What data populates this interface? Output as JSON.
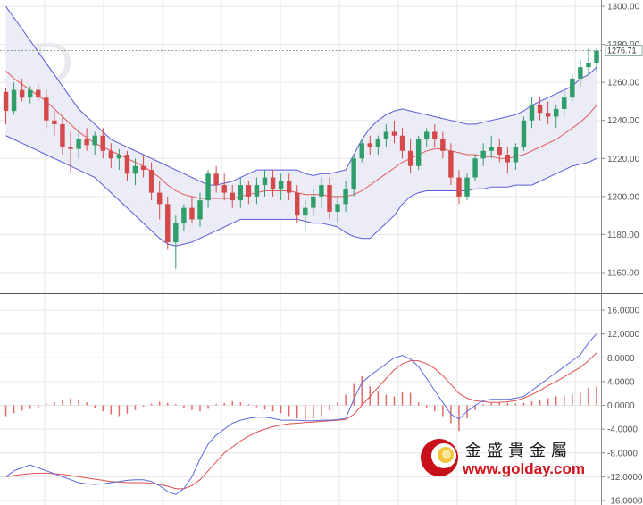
{
  "chart_data": [
    {
      "type": "candlestick",
      "panel": "price",
      "watermark": "1D",
      "last_price_label": "1276.71",
      "last_price": 1276.71,
      "ylim": [
        1150,
        1305
      ],
      "y_ticks": [
        1300,
        1280,
        1260,
        1240,
        1220,
        1200,
        1180,
        1160
      ],
      "y_tick_labels": [
        "1300.00",
        "1280.00",
        "1260.00",
        "1240.00",
        "1220.00",
        "1200.00",
        "1180.00",
        "1160.00"
      ],
      "grid": true,
      "ohlc": [
        [
          1255,
          1257,
          1238,
          1245
        ],
        [
          1245,
          1260,
          1243,
          1256
        ],
        [
          1256,
          1262,
          1250,
          1252
        ],
        [
          1252,
          1258,
          1249,
          1256
        ],
        [
          1256,
          1259,
          1250,
          1252
        ],
        [
          1252,
          1256,
          1236,
          1240
        ],
        [
          1240,
          1245,
          1232,
          1238
        ],
        [
          1238,
          1242,
          1222,
          1226
        ],
        [
          1226,
          1234,
          1212,
          1225
        ],
        [
          1225,
          1235,
          1220,
          1230
        ],
        [
          1230,
          1236,
          1224,
          1227
        ],
        [
          1227,
          1234,
          1222,
          1232
        ],
        [
          1232,
          1236,
          1220,
          1224
        ],
        [
          1224,
          1228,
          1215,
          1220
        ],
        [
          1220,
          1225,
          1214,
          1222
        ],
        [
          1222,
          1224,
          1208,
          1212
        ],
        [
          1212,
          1220,
          1206,
          1216
        ],
        [
          1216,
          1222,
          1210,
          1214
        ],
        [
          1214,
          1218,
          1198,
          1202
        ],
        [
          1202,
          1208,
          1188,
          1196
        ],
        [
          1196,
          1200,
          1172,
          1176
        ],
        [
          1176,
          1190,
          1162,
          1186
        ],
        [
          1186,
          1196,
          1182,
          1194
        ],
        [
          1194,
          1200,
          1186,
          1188
        ],
        [
          1188,
          1202,
          1184,
          1198
        ],
        [
          1198,
          1214,
          1194,
          1212
        ],
        [
          1212,
          1216,
          1202,
          1206
        ],
        [
          1206,
          1212,
          1198,
          1202
        ],
        [
          1202,
          1206,
          1194,
          1198
        ],
        [
          1198,
          1210,
          1194,
          1206
        ],
        [
          1206,
          1208,
          1196,
          1200
        ],
        [
          1200,
          1210,
          1196,
          1206
        ],
        [
          1206,
          1214,
          1200,
          1210
        ],
        [
          1210,
          1214,
          1200,
          1204
        ],
        [
          1204,
          1212,
          1198,
          1208
        ],
        [
          1208,
          1212,
          1198,
          1202
        ],
        [
          1202,
          1206,
          1186,
          1190
        ],
        [
          1190,
          1198,
          1182,
          1194
        ],
        [
          1194,
          1204,
          1190,
          1200
        ],
        [
          1200,
          1210,
          1194,
          1206
        ],
        [
          1206,
          1210,
          1188,
          1192
        ],
        [
          1192,
          1200,
          1186,
          1196
        ],
        [
          1196,
          1208,
          1192,
          1204
        ],
        [
          1204,
          1222,
          1200,
          1220
        ],
        [
          1220,
          1230,
          1218,
          1228
        ],
        [
          1228,
          1232,
          1222,
          1226
        ],
        [
          1226,
          1232,
          1222,
          1230
        ],
        [
          1230,
          1238,
          1226,
          1234
        ],
        [
          1234,
          1240,
          1228,
          1232
        ],
        [
          1232,
          1236,
          1220,
          1224
        ],
        [
          1224,
          1230,
          1212,
          1216
        ],
        [
          1216,
          1232,
          1214,
          1230
        ],
        [
          1230,
          1236,
          1226,
          1234
        ],
        [
          1234,
          1238,
          1226,
          1230
        ],
        [
          1230,
          1234,
          1220,
          1224
        ],
        [
          1224,
          1228,
          1206,
          1210
        ],
        [
          1210,
          1214,
          1196,
          1200
        ],
        [
          1200,
          1212,
          1198,
          1210
        ],
        [
          1210,
          1222,
          1208,
          1220
        ],
        [
          1220,
          1228,
          1216,
          1224
        ],
        [
          1224,
          1232,
          1220,
          1226
        ],
        [
          1226,
          1230,
          1218,
          1222
        ],
        [
          1222,
          1226,
          1212,
          1218
        ],
        [
          1218,
          1228,
          1214,
          1226
        ],
        [
          1226,
          1242,
          1224,
          1240
        ],
        [
          1240,
          1252,
          1236,
          1248
        ],
        [
          1248,
          1252,
          1240,
          1244
        ],
        [
          1244,
          1250,
          1238,
          1242
        ],
        [
          1242,
          1248,
          1236,
          1246
        ],
        [
          1246,
          1256,
          1242,
          1252
        ],
        [
          1252,
          1264,
          1250,
          1262
        ],
        [
          1262,
          1272,
          1258,
          1268
        ],
        [
          1268,
          1278,
          1264,
          1270
        ],
        [
          1270,
          1278,
          1266,
          1276.71
        ]
      ],
      "sma": [
        1266,
        1262,
        1259,
        1256,
        1253,
        1250,
        1246,
        1242,
        1238,
        1234,
        1231,
        1228,
        1226,
        1224,
        1222,
        1220,
        1218,
        1216,
        1213,
        1210,
        1206,
        1203,
        1201,
        1200,
        1199,
        1199,
        1199,
        1199,
        1199,
        1200,
        1201,
        1202,
        1203,
        1203,
        1203,
        1203,
        1202,
        1201,
        1201,
        1201,
        1200,
        1200,
        1200,
        1201,
        1203,
        1206,
        1209,
        1212,
        1215,
        1218,
        1220,
        1222,
        1224,
        1225,
        1225,
        1224,
        1223,
        1222,
        1222,
        1221,
        1221,
        1220,
        1220,
        1221,
        1222,
        1224,
        1226,
        1228,
        1230,
        1233,
        1236,
        1239,
        1243,
        1248
      ],
      "bb_upper": [
        1300,
        1294,
        1288,
        1282,
        1276,
        1270,
        1264,
        1258,
        1252,
        1246,
        1242,
        1238,
        1234,
        1230,
        1228,
        1226,
        1224,
        1222,
        1220,
        1218,
        1216,
        1214,
        1212,
        1210,
        1208,
        1206,
        1206,
        1207,
        1208,
        1210,
        1212,
        1214,
        1214,
        1214,
        1214,
        1214,
        1214,
        1212,
        1211,
        1212,
        1212,
        1213,
        1214,
        1222,
        1230,
        1236,
        1240,
        1243,
        1245,
        1246,
        1245,
        1244,
        1243,
        1242,
        1241,
        1240,
        1239,
        1238,
        1238,
        1239,
        1240,
        1241,
        1242,
        1243,
        1245,
        1248,
        1250,
        1252,
        1254,
        1256,
        1258,
        1262,
        1264,
        1268
      ],
      "bb_lower": [
        1232,
        1230,
        1228,
        1226,
        1224,
        1222,
        1220,
        1218,
        1216,
        1214,
        1212,
        1210,
        1206,
        1202,
        1198,
        1194,
        1190,
        1186,
        1182,
        1178,
        1175,
        1174,
        1175,
        1176,
        1178,
        1180,
        1182,
        1184,
        1186,
        1188,
        1188,
        1188,
        1188,
        1188,
        1188,
        1188,
        1188,
        1187,
        1186,
        1186,
        1185,
        1184,
        1181,
        1179,
        1178,
        1178,
        1182,
        1186,
        1190,
        1196,
        1200,
        1202,
        1203,
        1203,
        1203,
        1203,
        1203,
        1203,
        1204,
        1204,
        1205,
        1205,
        1205,
        1206,
        1206,
        1206,
        1208,
        1210,
        1212,
        1214,
        1216,
        1217,
        1218,
        1220
      ]
    },
    {
      "type": "macd",
      "panel": "indicator",
      "ylim": [
        -17,
        17
      ],
      "y_ticks": [
        16,
        12,
        8,
        4,
        0,
        -4,
        -8,
        -12,
        -16
      ],
      "y_tick_labels": [
        "16.0000",
        "12.0000",
        "8.0000",
        "4.0000",
        "0.0000",
        "-4.0000",
        "-8.0000",
        "-12.0000",
        "-16.0000"
      ],
      "grid": true,
      "macd": [
        -12,
        -11,
        -10.5,
        -10,
        -10.5,
        -11,
        -11.5,
        -12,
        -12.5,
        -13,
        -13.2,
        -13.3,
        -13.2,
        -13,
        -12.8,
        -12.6,
        -12.5,
        -12.5,
        -12.8,
        -13.5,
        -14.5,
        -15,
        -14,
        -12,
        -9,
        -6.5,
        -5,
        -4,
        -3,
        -2.5,
        -2.2,
        -2,
        -2,
        -2.2,
        -2.5,
        -2.5,
        -2.5,
        -2.6,
        -2.6,
        -2.5,
        -2.5,
        -2.4,
        -2.2,
        1,
        3.8,
        5,
        6,
        7,
        8,
        8.4,
        7.8,
        6.5,
        4.5,
        2.5,
        0.5,
        -1.5,
        -2.3,
        -1,
        0,
        0.8,
        1,
        1,
        1,
        1.2,
        1.5,
        2.5,
        3.5,
        4.5,
        5.5,
        6.5,
        7.5,
        8.5,
        10.5,
        12
      ],
      "signal": [
        -12,
        -11.8,
        -11.6,
        -11.5,
        -11.4,
        -11.4,
        -11.5,
        -11.6,
        -11.8,
        -12,
        -12.2,
        -12.4,
        -12.6,
        -12.8,
        -12.9,
        -13,
        -13,
        -13,
        -13.1,
        -13.3,
        -13.6,
        -14,
        -14,
        -13.5,
        -12.5,
        -11,
        -9.5,
        -8,
        -7,
        -6,
        -5.2,
        -4.5,
        -4,
        -3.6,
        -3.3,
        -3.1,
        -3,
        -2.9,
        -2.8,
        -2.7,
        -2.6,
        -2.5,
        -2.4,
        -1.5,
        0,
        1.5,
        3,
        4.5,
        6,
        7,
        7.5,
        7.5,
        7,
        6.2,
        5,
        3.5,
        2,
        1.2,
        0.8,
        0.6,
        0.5,
        0.5,
        0.6,
        0.8,
        1.2,
        1.8,
        2.5,
        3.3,
        4,
        4.8,
        5.6,
        6.4,
        7.5,
        8.8
      ],
      "histogram": [
        -1.8,
        -1.3,
        -0.9,
        -0.6,
        -0.4,
        0.3,
        0.6,
        0.9,
        1.2,
        1,
        0.5,
        -0.5,
        -1,
        -1.5,
        -1.8,
        -1.4,
        -0.8,
        -0.2,
        0.3,
        0.6,
        0.4,
        0.2,
        -0.5,
        -0.8,
        -1,
        -0.6,
        0.2,
        0.4,
        0.7,
        0.5,
        0.2,
        -0.3,
        -0.7,
        -1,
        -1.3,
        -1.8,
        -2.2,
        -2.5,
        -2.2,
        -1.8,
        -0.8,
        0.5,
        1.8,
        3.6,
        4.9,
        3.2,
        2.4,
        1.8,
        1.5,
        2.2,
        2.1,
        0.5,
        -0.4,
        -1,
        -1.8,
        -3,
        -4.3,
        -2.2,
        -0.8,
        0.2,
        0.4,
        0.5,
        0.4,
        0.3,
        0.4,
        0.7,
        1,
        1.2,
        1.5,
        1.7,
        1.9,
        2.1,
        3,
        3.2
      ]
    }
  ],
  "logo": {
    "cn_text": "金盛貴金屬",
    "url_text": "www.golday.com"
  },
  "colors": {
    "up": "#2f9e6a",
    "down": "#d44a4a",
    "sma": "#e05a5a",
    "band": "#5a5ad8",
    "band_fill": "#ececf7",
    "macd": "#5a68e0",
    "signal": "#e05050",
    "grid": "#e6e6e6",
    "separator": "#555555"
  }
}
